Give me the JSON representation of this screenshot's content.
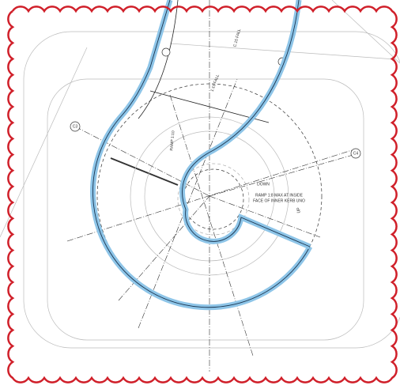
{
  "labels": {
    "grid_left": "C3",
    "grid_right": "C4",
    "fall_top": "C.15 FALL",
    "fall_mid": "1:15 FALL",
    "ramp_left": "RAMP 1:10",
    "down": "DOWN",
    "ramp_note": [
      "RAMP 1:8 MAX AT INSIDE",
      "FACE OF INNER KERB UNO"
    ],
    "up": "UP"
  }
}
